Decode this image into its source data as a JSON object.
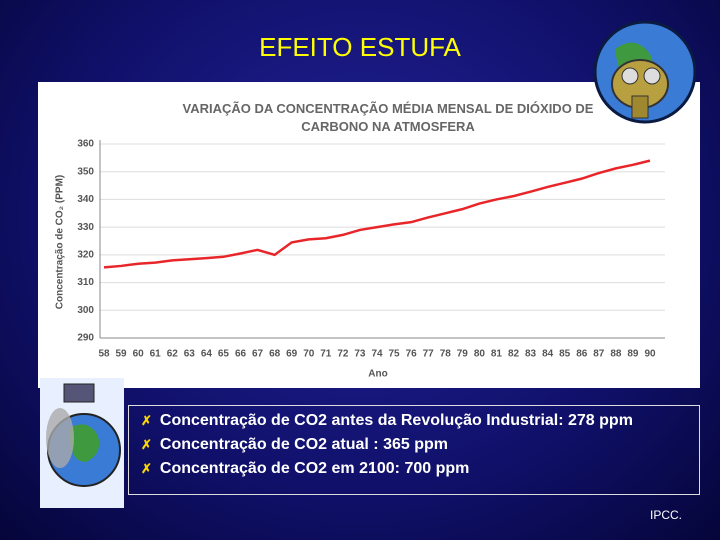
{
  "slide": {
    "title": "EFEITO ESTUFA",
    "bullets": [
      "Concentração de CO2 antes da Revolução Industrial: 278 ppm",
      "Concentração de CO2 atual : 365 ppm",
      "Concentração de CO2 em 2100: 700 ppm"
    ],
    "source": "IPCC."
  },
  "chart_data": {
    "type": "line",
    "title": [
      "VARIAÇÃO DA CONCENTRAÇÃO MÉDIA MENSAL DE DIÓXIDO DE",
      "CARBONO NA ATMOSFERA"
    ],
    "x_label": "Ano",
    "y_label": "Concentração de CO₂ (PPM)",
    "categories": [
      "58",
      "59",
      "60",
      "61",
      "62",
      "63",
      "64",
      "65",
      "66",
      "67",
      "68",
      "69",
      "70",
      "71",
      "72",
      "73",
      "74",
      "75",
      "76",
      "77",
      "78",
      "79",
      "80",
      "81",
      "82",
      "83",
      "84",
      "85",
      "86",
      "87",
      "88",
      "89",
      "90"
    ],
    "values": [
      315.5,
      316,
      316.8,
      317.2,
      318,
      318.4,
      318.8,
      319.3,
      320.5,
      321.8,
      320,
      324.5,
      325.6,
      326,
      327.2,
      329,
      330,
      331,
      331.8,
      333.5,
      335,
      336.5,
      338.5,
      340,
      341.2,
      342.8,
      344.5,
      346,
      347.5,
      349.5,
      351.2,
      352.5,
      354
    ],
    "color": "#e8262a",
    "ylim": [
      290,
      360
    ],
    "yticks": [
      290,
      300,
      310,
      320,
      330,
      340,
      350,
      360
    ],
    "grid": true
  }
}
